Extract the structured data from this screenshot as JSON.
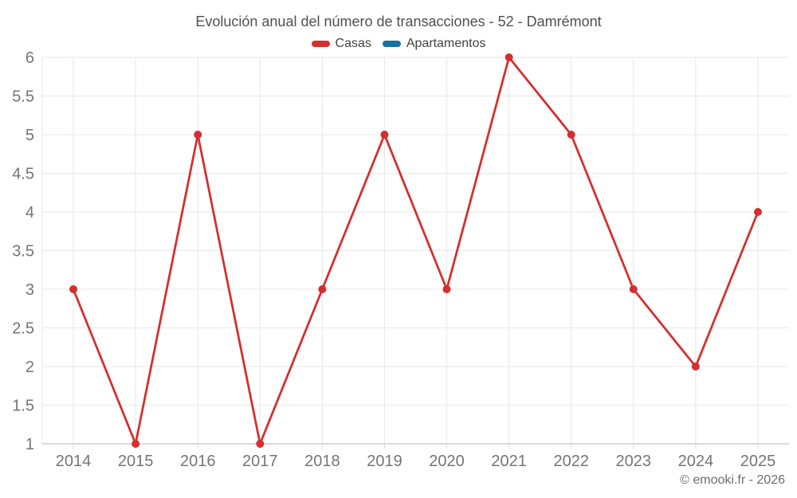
{
  "chart_data": {
    "type": "line",
    "title": "Evolución anual del número de transacciones - 52 - Damrémont",
    "categories": [
      "2014",
      "2015",
      "2016",
      "2017",
      "2018",
      "2019",
      "2020",
      "2021",
      "2022",
      "2023",
      "2024",
      "2025"
    ],
    "series": [
      {
        "name": "Casas",
        "color": "#d62d2d",
        "values": [
          3,
          1,
          5,
          1,
          3,
          5,
          3,
          6,
          5,
          3,
          2,
          4
        ]
      },
      {
        "name": "Apartamentos",
        "color": "#1670a0",
        "values": []
      }
    ],
    "ylim": [
      1,
      6
    ],
    "ytick_step": 0.5,
    "yticks": [
      "1",
      "1.5",
      "2",
      "2.5",
      "3",
      "3.5",
      "4",
      "4.5",
      "5",
      "5.5",
      "6"
    ],
    "xlabel": "",
    "ylabel": "",
    "grid": true,
    "legend_position": "top"
  },
  "footer": {
    "credit": "© emooki.fr - 2026"
  },
  "colors": {
    "grid": "#e8e8e8",
    "axis": "#d9d9d9",
    "axis_text": "#757575",
    "title_text": "#4f4f4f",
    "legend_text": "#424242",
    "footer_text": "#6d6d6d",
    "background": "#ffffff"
  }
}
